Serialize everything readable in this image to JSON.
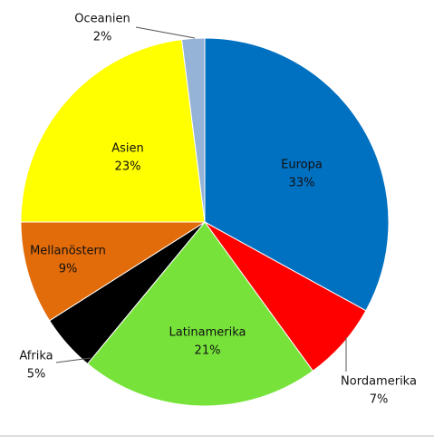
{
  "chart_data": {
    "type": "pie",
    "categories": [
      "Europa",
      "Nordamerika",
      "Latinamerika",
      "Afrika",
      "Mellanöstern",
      "Asien",
      "Oceanien"
    ],
    "values": [
      33,
      7,
      21,
      5,
      9,
      23,
      2
    ],
    "value_labels": [
      "33%",
      "7%",
      "21%",
      "5%",
      "9%",
      "23%",
      "2%"
    ],
    "colors": [
      "#0070c0",
      "#ff0000",
      "#77e33a",
      "#000000",
      "#e26b0a",
      "#ffff00",
      "#95b3d7"
    ]
  }
}
